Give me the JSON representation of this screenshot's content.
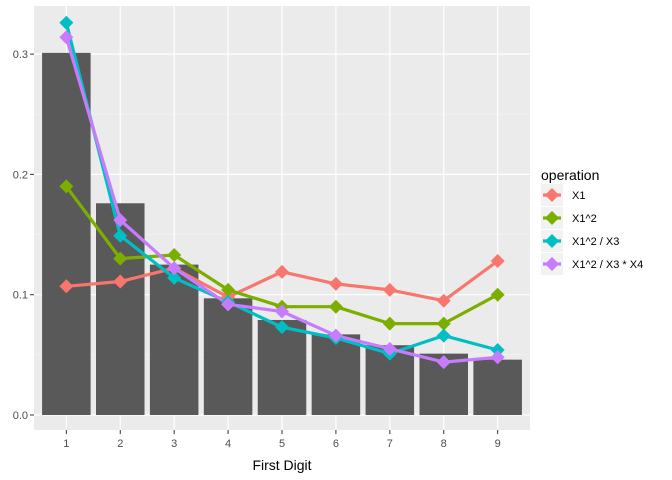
{
  "chart_data": {
    "type": "bar+line",
    "xlabel": "First Digit",
    "ylabel": "",
    "x": [
      1,
      2,
      3,
      4,
      5,
      6,
      7,
      8,
      9
    ],
    "x_tick_labels": [
      "1",
      "2",
      "3",
      "4",
      "5",
      "6",
      "7",
      "8",
      "9"
    ],
    "ylim": [
      0,
      0.33
    ],
    "y_ticks": [
      0.0,
      0.1,
      0.2,
      0.3
    ],
    "y_tick_labels": [
      "0.0",
      "0.1",
      "0.2",
      "0.3"
    ],
    "grid": true,
    "bar_color": "#595959",
    "bars": [
      0.301,
      0.176,
      0.125,
      0.097,
      0.079,
      0.067,
      0.058,
      0.051,
      0.046
    ],
    "legend": {
      "title": "operation",
      "position": "right"
    },
    "series": [
      {
        "name": "X1",
        "color": "#F8766D",
        "values": [
          0.107,
          0.111,
          0.122,
          0.098,
          0.119,
          0.109,
          0.104,
          0.095,
          0.128
        ]
      },
      {
        "name": "X1^2",
        "color": "#7CAE00",
        "values": [
          0.19,
          0.13,
          0.133,
          0.104,
          0.09,
          0.09,
          0.076,
          0.076,
          0.1
        ]
      },
      {
        "name": "X1^2 / X3",
        "color": "#00BFC4",
        "values": [
          0.326,
          0.149,
          0.114,
          0.094,
          0.073,
          0.064,
          0.051,
          0.066,
          0.054
        ]
      },
      {
        "name": "X1^2 / X3 * X4",
        "color": "#C77CFF",
        "values": [
          0.314,
          0.162,
          0.122,
          0.092,
          0.086,
          0.066,
          0.055,
          0.044,
          0.048
        ]
      }
    ]
  }
}
